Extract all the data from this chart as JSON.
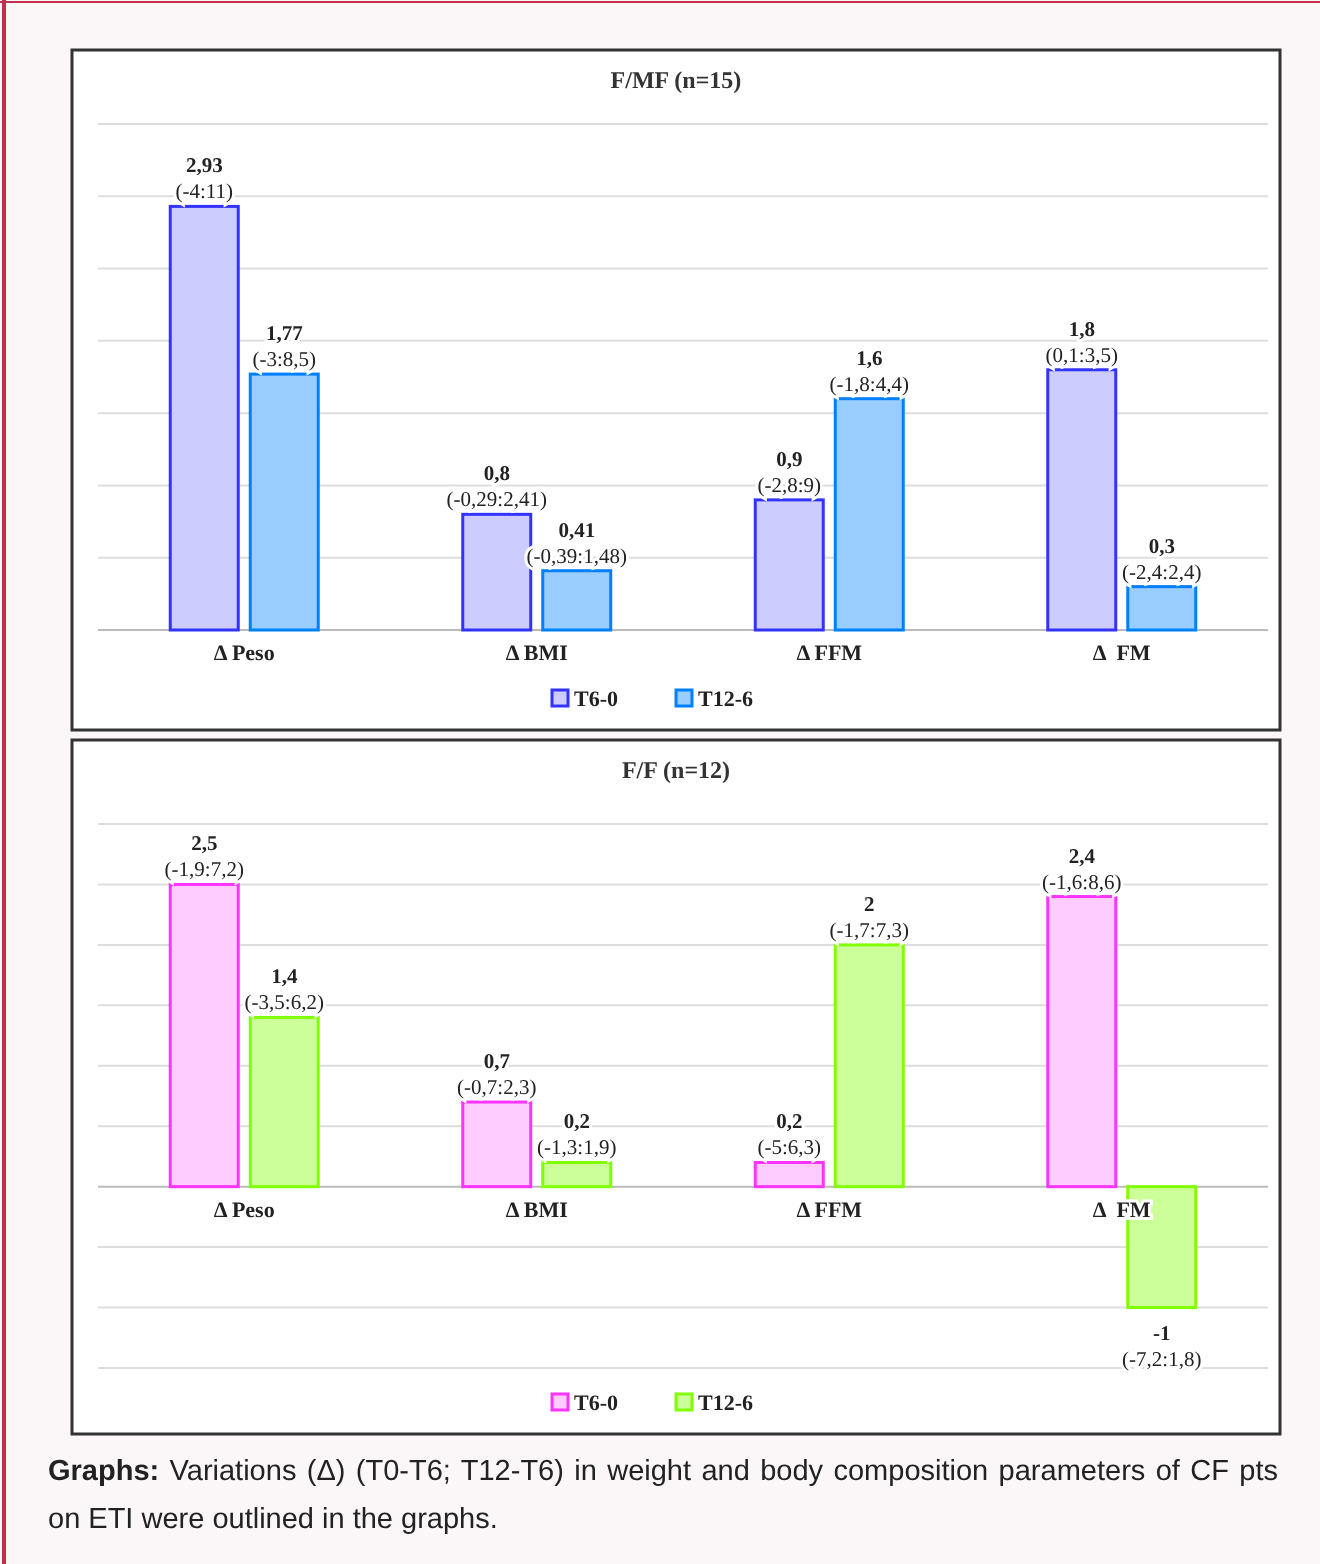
{
  "chart_data": [
    {
      "type": "bar",
      "title": "F/MF (n=15)",
      "categories": [
        "Δ Peso",
        "Δ BMI",
        "Δ FFM",
        "Δ  FM"
      ],
      "series": [
        {
          "name": "T6-0",
          "color": "#ccccff",
          "values": [
            2.93,
            0.8,
            0.9,
            1.8
          ],
          "value_labels": [
            "2,93\n(-4:11)",
            "0,8\n(-0,29:2,41)",
            "0,9\n(-2,8:9)",
            "1,8\n(0,1:3,5)"
          ]
        },
        {
          "name": "T12-6",
          "color": "#99ccff",
          "values": [
            1.77,
            0.41,
            1.6,
            0.3
          ],
          "value_labels": [
            "1,77\n(-3:8,5)",
            "0,41\n(-0,39:1,48)",
            "1,6\n(-1,8:4,4)",
            "0,3\n(-2,4:2,4)"
          ]
        }
      ],
      "ylim": [
        0,
        3.5
      ],
      "yticks": [
        {
          "value": 0,
          "label": null
        },
        {
          "value": 0.5,
          "label": null
        },
        {
          "value": 1,
          "label": null
        },
        {
          "value": 1.5,
          "label": null
        },
        {
          "value": 2,
          "label": null
        },
        {
          "value": 2.5,
          "label": null
        },
        {
          "value": 3,
          "label": null
        },
        {
          "value": 3.5,
          "label": null
        }
      ],
      "grid": "y",
      "tick_labels": "x",
      "legend": "bottom"
    },
    {
      "type": "bar",
      "title": "F/F (n=12)",
      "categories": [
        "Δ Peso",
        "Δ BMI",
        "Δ FFM",
        "Δ  FM"
      ],
      "series": [
        {
          "name": "T6-0",
          "color": "#ffccff",
          "values": [
            2.5,
            0.7,
            0.2,
            2.4
          ],
          "value_labels": [
            "2,5\n(-1,9:7,2)",
            "0,7\n(-0,7:2,3)",
            "0,2\n(-5:6,3)",
            "2,4\n(-1,6:8,6)"
          ]
        },
        {
          "name": "T12-6",
          "color": "#ccff99",
          "values": [
            1.4,
            0.2,
            2,
            -1
          ],
          "value_labels": [
            "1,4\n(-3,5:6,2)",
            "0,2\n(-1,3:1,9)",
            "2\n(-1,7:7,3)",
            "-1\n(-7,2:1,8)"
          ]
        }
      ],
      "ylim": [
        -1.5,
        3
      ],
      "yticks": [
        {
          "value": -1.5,
          "label": null
        },
        {
          "value": -1,
          "label": null
        },
        {
          "value": -0.5,
          "label": null
        },
        {
          "value": 0,
          "label": null
        },
        {
          "value": 0.5,
          "label": null
        },
        {
          "value": 1,
          "label": null
        },
        {
          "value": 1.5,
          "label": null
        },
        {
          "value": 2,
          "label": null
        },
        {
          "value": 2.5,
          "label": null
        },
        {
          "value": 3,
          "label": null
        }
      ],
      "grid": "y",
      "tick_labels": "x",
      "legend": "bottom",
      "annotations": [
        "Graphs: Variations (Δ) (T0-T6; T12-T6) in weight and body composition parameters of CF pts on ETI were outlined in the graphs."
      ]
    }
  ]
}
